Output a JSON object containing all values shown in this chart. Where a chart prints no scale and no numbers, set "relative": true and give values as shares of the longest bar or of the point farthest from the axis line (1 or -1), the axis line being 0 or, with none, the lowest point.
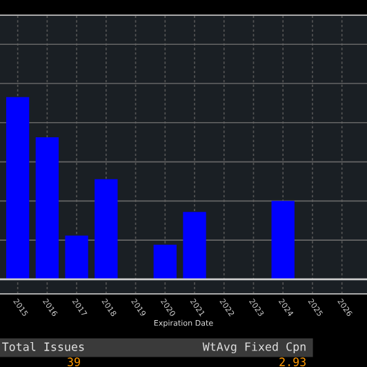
{
  "chart_data": {
    "type": "bar",
    "relative": true,
    "xlabel": "Expiration Date",
    "categories": [
      "2015",
      "2016",
      "2017",
      "2018",
      "2019",
      "2020",
      "2021",
      "2022",
      "2023",
      "2024",
      "2025",
      "2026"
    ],
    "values": [
      1,
      0.78,
      0.24,
      0.55,
      0,
      0.19,
      0.37,
      0,
      0,
      0.43,
      0,
      0
    ],
    "color": "#0000ff",
    "grid": true,
    "annotations": [
      "Total Issues",
      "39",
      "WtAvg Fixed Cpn",
      "2.93"
    ]
  }
}
